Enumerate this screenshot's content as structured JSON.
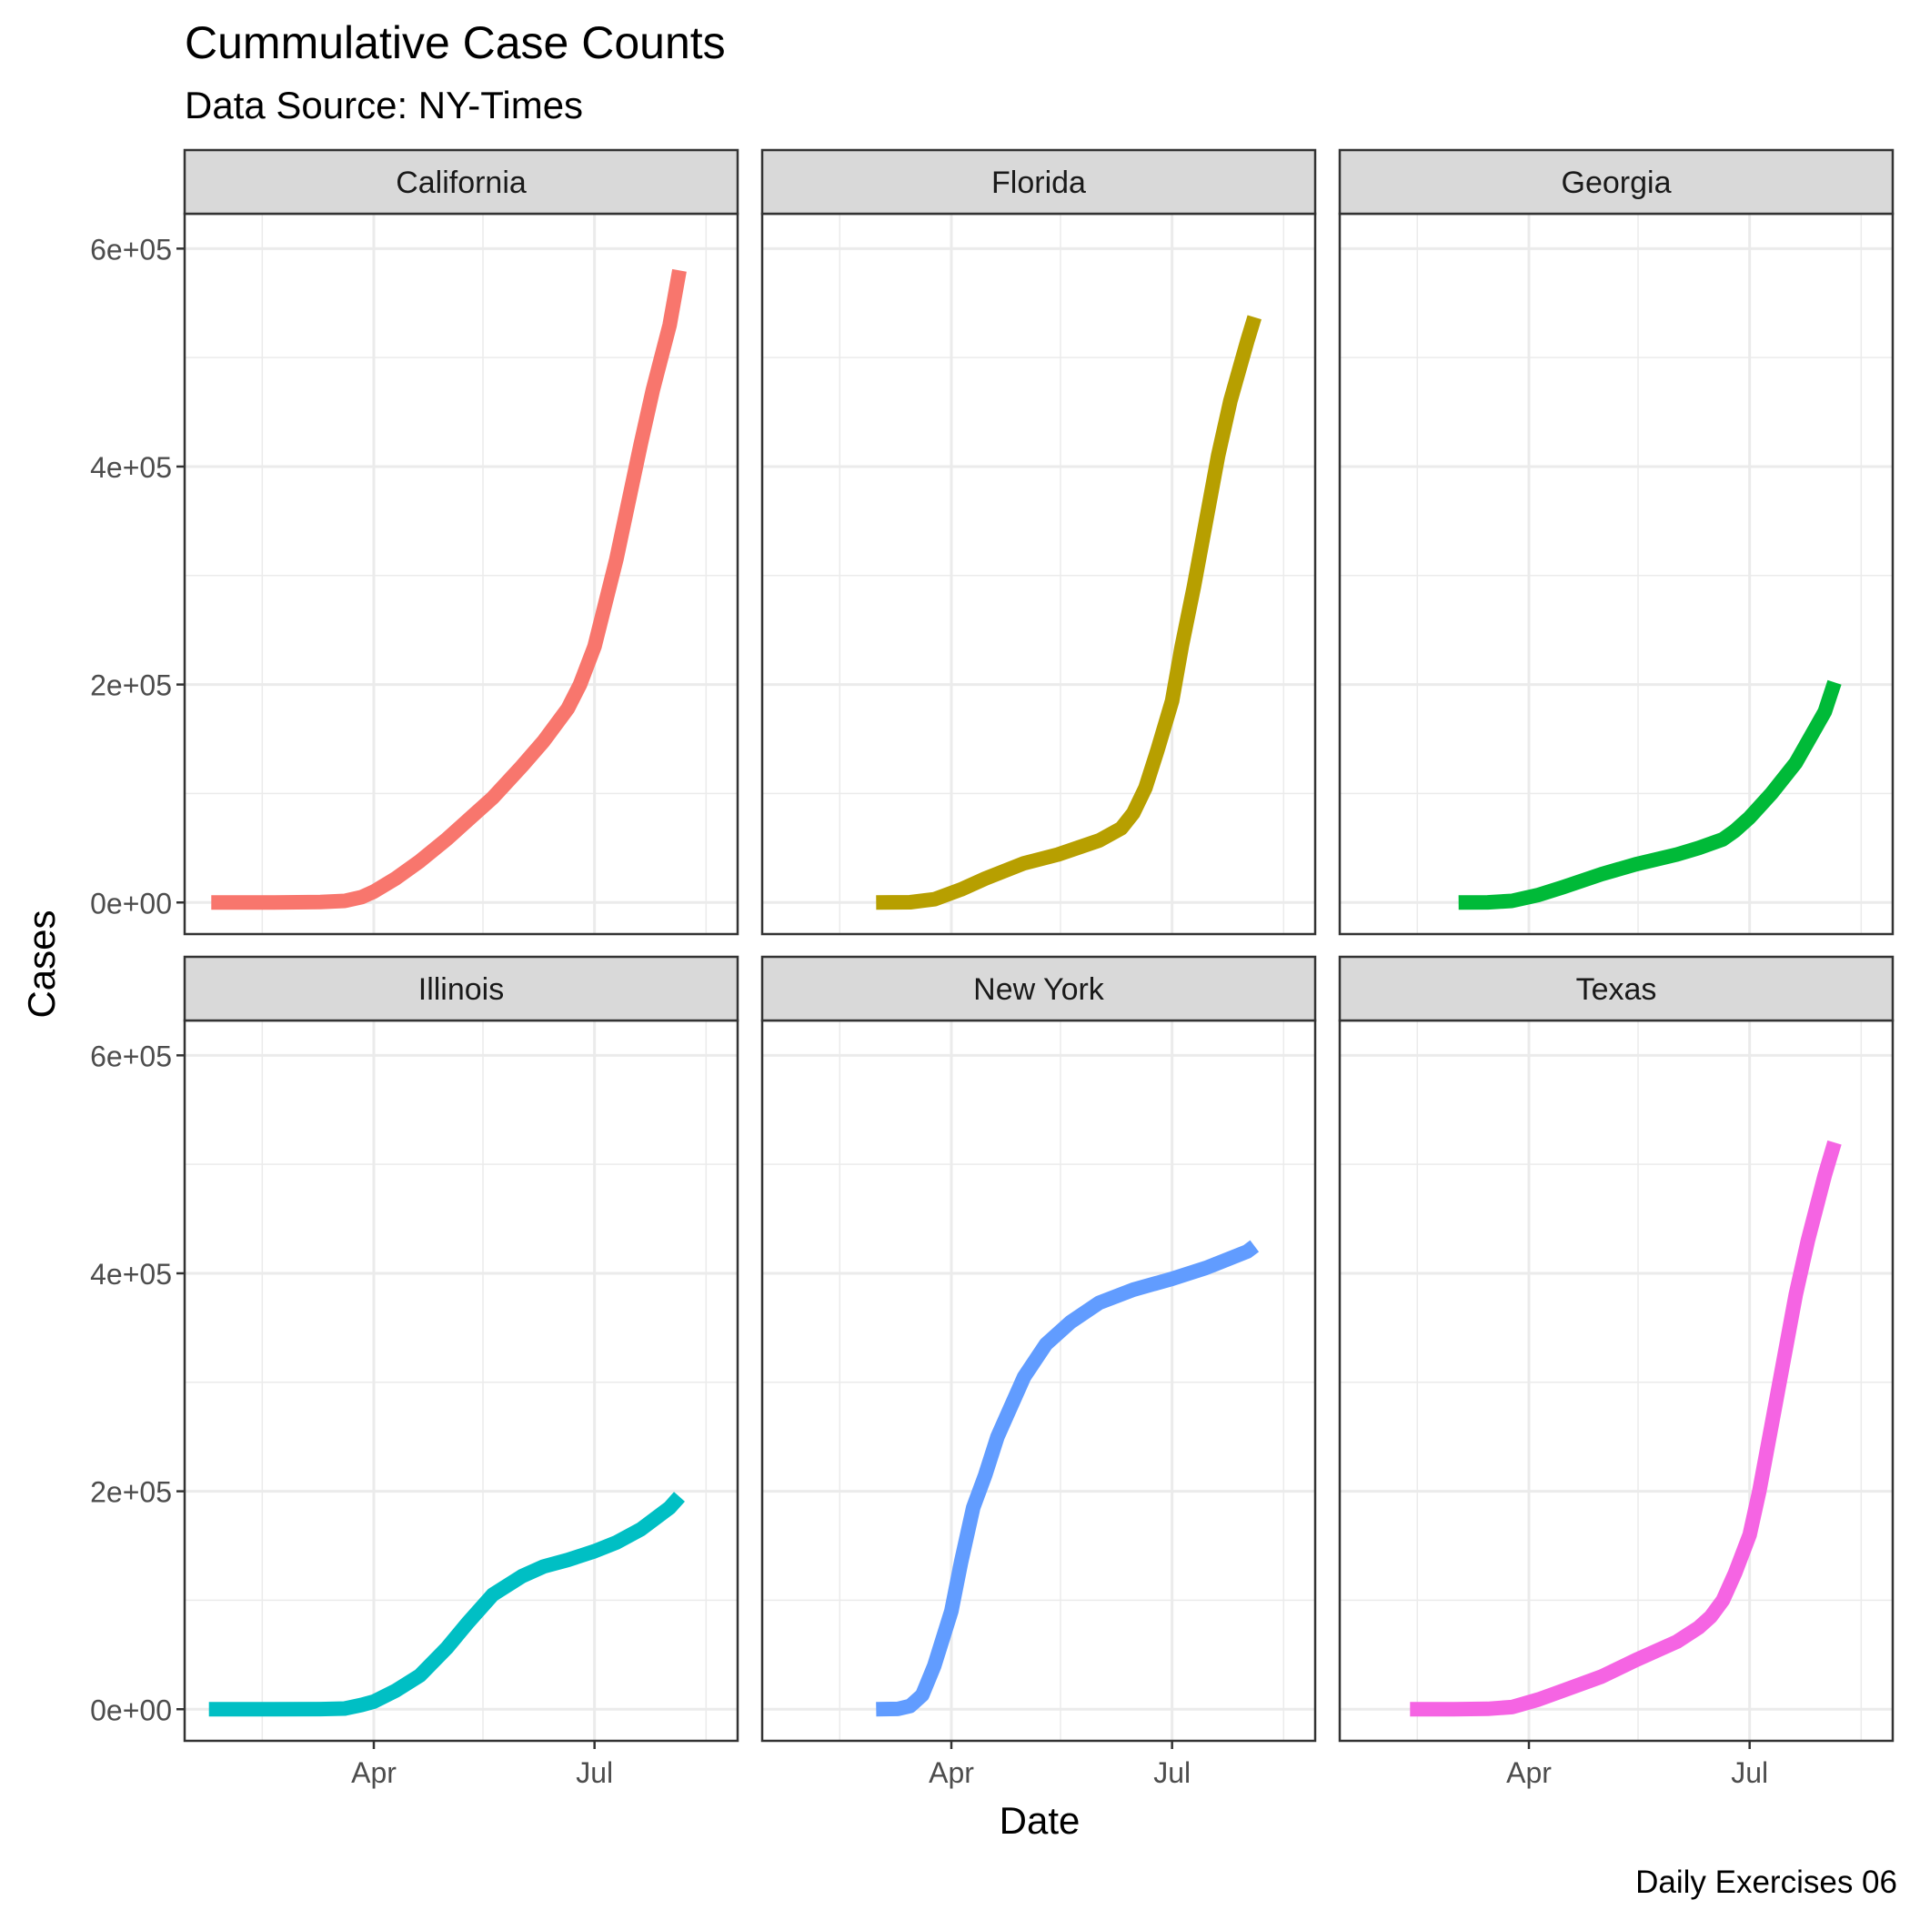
{
  "title": "Cummulative Case Counts",
  "subtitle": "Data Source: NY-Times",
  "caption": "Daily Exercises 06",
  "colors": {
    "California": "#F8766D",
    "Florida": "#B79F00",
    "Georgia": "#00BA38",
    "Illinois": "#00BFC4",
    "New York": "#619CFF",
    "Texas": "#F564E3",
    "strip_fill": "#D9D9D9",
    "panel_border": "#333333",
    "grid": "#EBEBEB"
  },
  "chart_data": {
    "type": "line",
    "facet_by": "state",
    "layout": "2 rows x 3 columns",
    "xlabel": "Date",
    "ylabel": "Cases",
    "ylim": [
      -29000,
      632000
    ],
    "xlim": [
      "2020-01-14",
      "2020-08-29"
    ],
    "x_ticks": [
      {
        "date": "2020-04-01",
        "label": "Apr"
      },
      {
        "date": "2020-07-01",
        "label": "Jul"
      }
    ],
    "x_minor_dates": [
      "2020-02-15",
      "2020-05-16",
      "2020-08-16"
    ],
    "y_ticks": [
      {
        "value": 0,
        "label": "0e+00"
      },
      {
        "value": 200000,
        "label": "2e+05"
      },
      {
        "value": 400000,
        "label": "4e+05"
      },
      {
        "value": 600000,
        "label": "6e+05"
      }
    ],
    "y_minor": [
      100000,
      300000,
      500000
    ],
    "grid": true,
    "legend": "none",
    "series": [
      {
        "name": "California",
        "x": [
          "2020-01-25",
          "2020-02-20",
          "2020-03-10",
          "2020-03-20",
          "2020-03-27",
          "2020-04-01",
          "2020-04-10",
          "2020-04-20",
          "2020-05-01",
          "2020-05-10",
          "2020-05-20",
          "2020-06-01",
          "2020-06-10",
          "2020-06-20",
          "2020-06-25",
          "2020-07-01",
          "2020-07-10",
          "2020-07-20",
          "2020-07-25",
          "2020-08-01",
          "2020-08-05"
        ],
        "y": [
          0,
          0,
          400,
          1500,
          5000,
          10000,
          22000,
          38000,
          58000,
          76000,
          96000,
          125000,
          148000,
          178000,
          200000,
          235000,
          315000,
          420000,
          470000,
          530000,
          580000
        ]
      },
      {
        "name": "Florida",
        "x": [
          "2020-03-01",
          "2020-03-15",
          "2020-03-25",
          "2020-04-05",
          "2020-04-15",
          "2020-05-01",
          "2020-05-15",
          "2020-06-01",
          "2020-06-10",
          "2020-06-15",
          "2020-06-20",
          "2020-06-25",
          "2020-07-01",
          "2020-07-05",
          "2020-07-10",
          "2020-07-15",
          "2020-07-20",
          "2020-07-25",
          "2020-08-01",
          "2020-08-04"
        ],
        "y": [
          0,
          200,
          3000,
          12000,
          22000,
          36000,
          44000,
          57000,
          68000,
          82000,
          105000,
          140000,
          185000,
          235000,
          290000,
          350000,
          410000,
          460000,
          515000,
          537000
        ]
      },
      {
        "name": "Georgia",
        "x": [
          "2020-03-03",
          "2020-03-15",
          "2020-03-25",
          "2020-04-05",
          "2020-04-15",
          "2020-05-01",
          "2020-05-15",
          "2020-06-01",
          "2020-06-10",
          "2020-06-20",
          "2020-06-25",
          "2020-07-01",
          "2020-07-10",
          "2020-07-20",
          "2020-08-01",
          "2020-08-05"
        ],
        "y": [
          0,
          100,
          1500,
          7000,
          14000,
          26000,
          35000,
          44000,
          50000,
          58000,
          66000,
          78000,
          100000,
          128000,
          175000,
          202000
        ]
      },
      {
        "name": "Illinois",
        "x": [
          "2020-01-24",
          "2020-02-20",
          "2020-03-10",
          "2020-03-20",
          "2020-03-27",
          "2020-04-01",
          "2020-04-10",
          "2020-04-20",
          "2020-05-01",
          "2020-05-10",
          "2020-05-20",
          "2020-06-01",
          "2020-06-10",
          "2020-06-20",
          "2020-07-01",
          "2020-07-10",
          "2020-07-20",
          "2020-08-01",
          "2020-08-05"
        ],
        "y": [
          0,
          0,
          100,
          600,
          4000,
          7000,
          17000,
          31000,
          56000,
          80000,
          105000,
          122000,
          131000,
          137000,
          145000,
          153000,
          165000,
          185000,
          195000
        ]
      },
      {
        "name": "New York",
        "x": [
          "2020-03-01",
          "2020-03-10",
          "2020-03-15",
          "2020-03-20",
          "2020-03-25",
          "2020-04-01",
          "2020-04-05",
          "2020-04-10",
          "2020-04-15",
          "2020-04-20",
          "2020-04-25",
          "2020-05-01",
          "2020-05-10",
          "2020-05-20",
          "2020-06-01",
          "2020-06-15",
          "2020-07-01",
          "2020-07-15",
          "2020-08-01",
          "2020-08-04"
        ],
        "y": [
          0,
          300,
          3000,
          13000,
          40000,
          90000,
          135000,
          185000,
          215000,
          250000,
          275000,
          305000,
          335000,
          355000,
          373000,
          385000,
          395000,
          405000,
          420000,
          425000
        ]
      },
      {
        "name": "Texas",
        "x": [
          "2020-02-12",
          "2020-03-01",
          "2020-03-15",
          "2020-03-25",
          "2020-04-05",
          "2020-04-15",
          "2020-05-01",
          "2020-05-15",
          "2020-06-01",
          "2020-06-10",
          "2020-06-15",
          "2020-06-20",
          "2020-06-25",
          "2020-07-01",
          "2020-07-05",
          "2020-07-10",
          "2020-07-15",
          "2020-07-20",
          "2020-07-25",
          "2020-08-01",
          "2020-08-05"
        ],
        "y": [
          0,
          0,
          400,
          2000,
          9000,
          17000,
          30000,
          45000,
          62000,
          75000,
          85000,
          100000,
          125000,
          160000,
          200000,
          260000,
          320000,
          380000,
          430000,
          490000,
          520000
        ]
      }
    ]
  }
}
